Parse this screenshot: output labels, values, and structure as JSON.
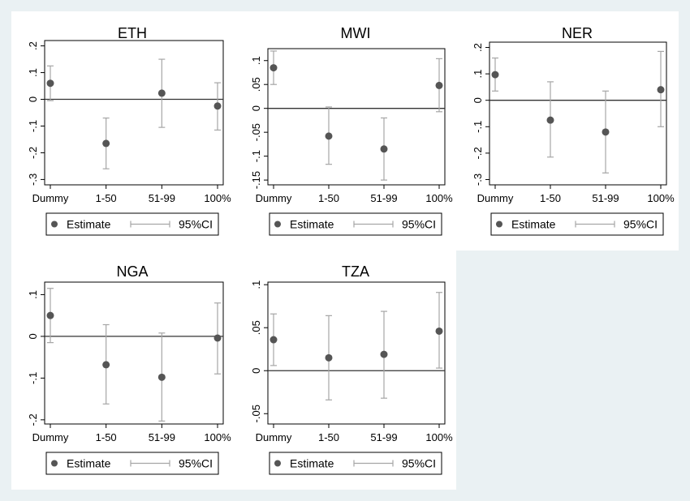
{
  "legend": {
    "estimate_label": "Estimate",
    "ci_label": "95%CI"
  },
  "colors": {
    "background": "#eaf1f3",
    "panel": "#ffffff",
    "marker": "#555555",
    "ci_line": "#a6a6a6",
    "zero_line": "#333333"
  },
  "chart_data": [
    {
      "type": "scatter",
      "title": "ETH",
      "categories": [
        "Dummy",
        "1-50",
        "51-99",
        "100%"
      ],
      "yticks": [
        -0.3,
        -0.2,
        -0.1,
        0,
        0.1,
        0.2
      ],
      "ytick_labels": [
        "-.3",
        "-.2",
        "-.1",
        "0",
        ".1",
        ".2"
      ],
      "ylim": [
        -0.32,
        0.22
      ],
      "series": [
        {
          "values": [
            0.06,
            -0.165,
            0.023,
            -0.025
          ]
        },
        {
          "name": "95%CI",
          "lower": [
            -0.005,
            -0.26,
            -0.105,
            -0.115
          ],
          "upper": [
            0.125,
            -0.07,
            0.15,
            0.062
          ]
        }
      ]
    },
    {
      "type": "scatter",
      "title": "MWI",
      "categories": [
        "Dummy",
        "1-50",
        "51-99",
        "100%"
      ],
      "yticks": [
        -0.15,
        -0.1,
        -0.05,
        0,
        0.05,
        0.1
      ],
      "ytick_labels": [
        "-.15",
        "-.1",
        "-.05",
        "0",
        ".05",
        ".1"
      ],
      "ylim": [
        -0.16,
        0.125
      ],
      "series": [
        {
          "values": [
            0.085,
            -0.058,
            -0.085,
            0.048
          ]
        },
        {
          "name": "95%CI",
          "lower": [
            0.05,
            -0.117,
            -0.15,
            -0.007
          ],
          "upper": [
            0.12,
            0.003,
            -0.02,
            0.104
          ]
        }
      ]
    },
    {
      "type": "scatter",
      "title": "NER",
      "categories": [
        "Dummy",
        "1-50",
        "51-99",
        "100%"
      ],
      "yticks": [
        -0.3,
        -0.2,
        -0.1,
        0,
        0.1,
        0.2
      ],
      "ytick_labels": [
        "-.3",
        "-.2",
        "-.1",
        "0",
        ".1",
        ".2"
      ],
      "ylim": [
        -0.32,
        0.22
      ],
      "series": [
        {
          "values": [
            0.097,
            -0.075,
            -0.12,
            0.04
          ]
        },
        {
          "name": "95%CI",
          "lower": [
            0.035,
            -0.215,
            -0.275,
            -0.1
          ],
          "upper": [
            0.16,
            0.07,
            0.035,
            0.185
          ]
        }
      ]
    },
    {
      "type": "scatter",
      "title": "NGA",
      "categories": [
        "Dummy",
        "1-50",
        "51-99",
        "100%"
      ],
      "yticks": [
        -0.2,
        -0.1,
        0,
        0.1
      ],
      "ytick_labels": [
        "-.2",
        "-.1",
        "0",
        ".1"
      ],
      "ylim": [
        -0.21,
        0.13
      ],
      "series": [
        {
          "values": [
            0.05,
            -0.068,
            -0.098,
            -0.004
          ]
        },
        {
          "name": "95%CI",
          "lower": [
            -0.015,
            -0.162,
            -0.203,
            -0.09
          ],
          "upper": [
            0.115,
            0.028,
            0.008,
            0.08
          ]
        }
      ]
    },
    {
      "type": "scatter",
      "title": "TZA",
      "categories": [
        "Dummy",
        "1-50",
        "51-99",
        "100%"
      ],
      "yticks": [
        -0.05,
        0,
        0.05,
        0.1
      ],
      "ytick_labels": [
        "-.05",
        "0",
        ".05",
        ".1"
      ],
      "ylim": [
        -0.062,
        0.103
      ],
      "series": [
        {
          "values": [
            0.036,
            0.015,
            0.019,
            0.046
          ]
        },
        {
          "name": "95%CI",
          "lower": [
            0.006,
            -0.034,
            -0.032,
            0.003
          ],
          "upper": [
            0.066,
            0.064,
            0.069,
            0.091
          ]
        }
      ]
    }
  ]
}
